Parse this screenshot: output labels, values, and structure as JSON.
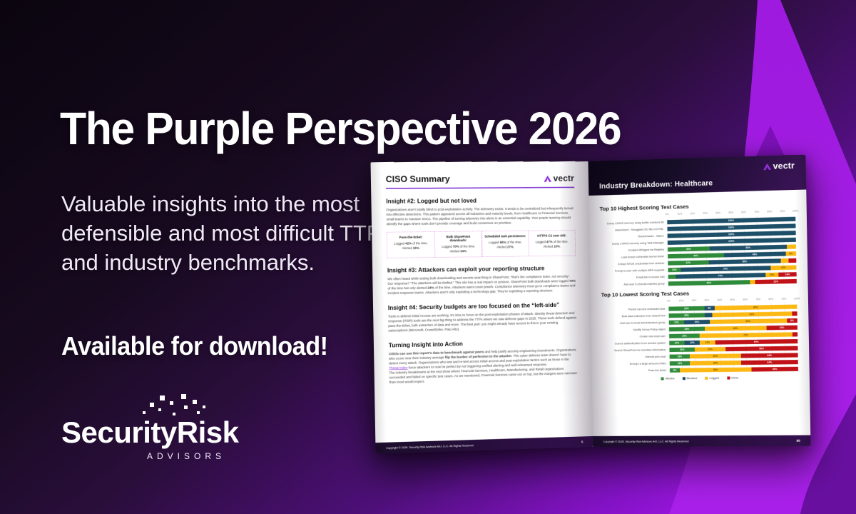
{
  "hero": {
    "title": "The Purple Perspective 2026",
    "subtitle": "Valuable insights into the most defensible and most difficult TTPs and industry benchmarks.",
    "cta": "Available for download!",
    "brand": {
      "name": "SecurityRisk",
      "sub": "ADVISORS"
    }
  },
  "colors": {
    "alerted": "#2e8b3a",
    "blocked": "#1e4f68",
    "logged": "#fdb913",
    "none": "#c11218",
    "vectr_purple": "#8f2be0",
    "accent_underline": "#7b2fd1",
    "stat_box_border": "#df85df",
    "background_bright_purple": "#a41be4"
  },
  "report": {
    "copyright": "Copyright © 2026. Security Risk Advisors A4J, LLC. All Rights Reserved",
    "left_page": {
      "header": "CISO Summary",
      "logo_text": "vectr",
      "page_number": "5",
      "insight2": {
        "title": "Insight #2: Logged but not loved",
        "body": [
          {
            "t": "Organizations aren't totally blind to post-exploitation activity. The telemetry exists. It tends to be centralized but infrequently turned into effective detections. This pattern appeared across all industries and maturity levels, from Healthcare to Financial Services, small teams to massive SOCs. The pipeline of turning telemetry into alerts is an essential capability. Your purple teaming should identify the gaps where tools don't provide coverage and build consensus on priorities."
          }
        ]
      },
      "stat_template": "Logged {logged} of the time. Alerted {alerted}.",
      "stat_boxes": [
        {
          "title": "Pass-the-ticket:",
          "logged": "42%",
          "alerted": "16%"
        },
        {
          "title": "Bulk SharePoint downloads:",
          "logged": "70%",
          "alerted": "24%"
        },
        {
          "title": "Scheduled task persistence:",
          "logged": "66%",
          "alerted": "27%"
        },
        {
          "title": "HTTPS C2 over 443:",
          "logged": "47%",
          "alerted": "10%"
        }
      ],
      "insight3": {
        "title": "Insight #3: Attackers can exploit your reporting structure",
        "body": [
          {
            "t": "We often heard while testing bulk downloading and secrets searching in SharePoint, “that's the compliance team, not security”. Our response? “The attackers will be thrilled.” This silo has a real impact on posture. SharePoint bulk downloads were logged "
          },
          {
            "t": "70%",
            "b": true
          },
          {
            "t": " of the time but only alerted "
          },
          {
            "t": "24%",
            "b": true
          },
          {
            "t": " of the time. Attackers want crown jewels. "
          },
          {
            "t": "Compliance telemetry",
            "i": true
          },
          {
            "t": " must go to compliance teams and incident response teams. Attackers aren't only exploiting a technology gap. They're exploiting a reporting structure."
          }
        ]
      },
      "insight4": {
        "title": "Insight #4: Security budgets are too focused on the “left-side”",
        "body": [
          {
            "t": "Tools to defend Initial Access are working. It's time to focus on the post-exploitation phases of attack. Identity threat detection and response (ITDR) tools are "
          },
          {
            "t": "the next big thing",
            "i": true
          },
          {
            "t": " to address the TTPs where we saw defense gaps in 2025. These tools defend against pass-the-ticket, bulk extraction of data and more. The best part: you might already have access to this in your existing subscriptions (Microsoft, CrowdStrike, Palo Alto)."
          }
        ]
      },
      "action": {
        "title": "Turning Insight into Action",
        "p1": [
          {
            "t": "CISOs can use this report's data to benchmark against peers",
            "b": true
          },
          {
            "t": " and help justify security engineering investments. Organizations who score near their industry average "
          },
          {
            "t": "flip the burden of perfection to the attacker",
            "b": true
          },
          {
            "t": ". The cyber defense team doesn't have to detect every attack. Organizations who test and re-test across initial access and post-exploitation tactics such as those in the "
          },
          {
            "t": "Threat Index",
            "link": true
          },
          {
            "t": " force attackers to now be perfect by not triggering verified alerting and well-rehearsed response."
          }
        ],
        "p2": [
          {
            "t": "The industry breakdowns at the end show where Financial Services, Healthcare, Manufacturing, and Retail organizations succeeded and failed on specific test cases. As we mentioned, Financial Services came out on top, but the margins were narrower than most would expect."
          }
        ]
      }
    },
    "right_page": {
      "header": "Industry Breakdown: Healthcare",
      "logo_text": "vectr",
      "page_number": "80"
    }
  },
  "chart_data": [
    {
      "type": "bar",
      "orientation": "horizontal-stacked",
      "title": "Top 10 Highest Scoring Test Cases",
      "x_ticks": [
        "0%",
        "10%",
        "20%",
        "30%",
        "40%",
        "50%",
        "60%",
        "70%",
        "80%",
        "90%",
        "100%"
      ],
      "series_keys": [
        "alerted",
        "blocked",
        "logged",
        "none"
      ],
      "rows": [
        {
          "label": "Dump LSASS memory using builtin comsvcs.dll",
          "alerted": 0,
          "blocked": 100,
          "logged": 0,
          "none": 0
        },
        {
          "label": "Attachment - Smuggled ISO file of HTML",
          "alerted": 0,
          "blocked": 100,
          "logged": 0,
          "none": 0
        },
        {
          "label": "Ransomware - Macro",
          "alerted": 0,
          "blocked": 100,
          "logged": 0,
          "none": 0
        },
        {
          "label": "Dump LSASS memory using Task Manager",
          "alerted": 0,
          "blocked": 100,
          "logged": 0,
          "none": 0
        },
        {
          "label": "Enabled WDigest via Registry",
          "alerted": 33,
          "blocked": 60,
          "logged": 7,
          "none": 0
        },
        {
          "label": "Load known vulnerable kernel driver",
          "alerted": 44,
          "blocked": 48,
          "logged": 8,
          "none": 0
        },
        {
          "label": "Extract NTDS credentials from shadow",
          "alerted": 32,
          "blocked": 56,
          "logged": 6,
          "none": 6
        },
        {
          "label": "Prompt a user with multiple MFA requests",
          "alerted": 10,
          "blocked": 70,
          "logged": 20,
          "none": 0
        },
        {
          "label": "Email link to known bad",
          "alerted": 6,
          "blocked": 70,
          "logged": 10,
          "none": 14
        },
        {
          "label": "Add user to Domain Admins group",
          "alerted": 64,
          "blocked": 0,
          "logged": 4,
          "none": 32
        }
      ]
    },
    {
      "type": "bar",
      "orientation": "horizontal-stacked",
      "title": "Top 10 Lowest Scoring Test Cases",
      "x_ticks": [
        "0%",
        "10%",
        "20%",
        "30%",
        "40%",
        "50%",
        "60%",
        "70%",
        "80%",
        "90%",
        "100%"
      ],
      "series_keys": [
        "alerted",
        "blocked",
        "logged",
        "none"
      ],
      "rows": [
        {
          "label": "Persist via new scheduled task",
          "alerted": 28,
          "blocked": 8,
          "logged": 64,
          "none": 0
        },
        {
          "label": "Bulk data collection from SharePoint",
          "alerted": 28,
          "blocked": 6,
          "logged": 62,
          "none": 4
        },
        {
          "label": "Add user to local Administrators group",
          "alerted": 12,
          "blocked": 20,
          "logged": 60,
          "none": 8
        },
        {
          "label": "Modify Group Policy object",
          "alerted": 28,
          "blocked": 0,
          "logged": 48,
          "none": 24
        },
        {
          "label": "Create new local user",
          "alerted": 24,
          "blocked": 0,
          "logged": 72,
          "none": 4
        },
        {
          "label": "Coerce authentication from domain system",
          "alerted": 12,
          "blocked": 12,
          "logged": 12,
          "none": 64
        },
        {
          "label": "Search SharePoint for sensitive information",
          "alerted": 20,
          "blocked": 0,
          "logged": 24,
          "none": 56
        },
        {
          "label": "Internal port scan",
          "alerted": 16,
          "blocked": 0,
          "logged": 40,
          "none": 44
        },
        {
          "label": "Encrypt a large amount of files",
          "alerted": 16,
          "blocked": 0,
          "logged": 40,
          "none": 44
        },
        {
          "label": "Pass-the-ticket",
          "alerted": 8,
          "blocked": 0,
          "logged": 56,
          "none": 36
        }
      ],
      "legend": [
        {
          "label": "Alerted",
          "key": "alerted"
        },
        {
          "label": "Blocked",
          "key": "blocked"
        },
        {
          "label": "Logged",
          "key": "logged"
        },
        {
          "label": "None",
          "key": "none"
        }
      ]
    }
  ]
}
